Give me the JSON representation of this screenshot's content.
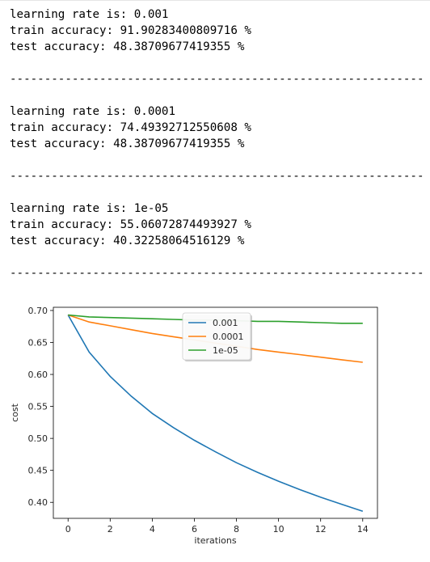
{
  "output": {
    "runs": [
      {
        "lr_line": "learning rate is: 0.001",
        "train_line": "train accuracy: 91.90283400809716 %",
        "test_line": "test accuracy: 48.38709677419355 %"
      },
      {
        "lr_line": "learning rate is: 0.0001",
        "train_line": "train accuracy: 74.49392712550608 %",
        "test_line": "test accuracy: 48.38709677419355 %"
      },
      {
        "lr_line": "learning rate is: 1e-05",
        "train_line": "train accuracy: 55.06072874493927 %",
        "test_line": "test accuracy: 40.32258064516129 %"
      }
    ],
    "separator": "-------------------------------------------------------------------"
  },
  "chart_data": {
    "type": "line",
    "xlabel": "iterations",
    "ylabel": "cost",
    "xlim": [
      -0.7,
      14.7
    ],
    "ylim": [
      0.375,
      0.705
    ],
    "xticks": [
      0,
      2,
      4,
      6,
      8,
      10,
      12,
      14
    ],
    "yticks": [
      0.4,
      0.45,
      0.5,
      0.55,
      0.6,
      0.65,
      0.7
    ],
    "ytick_labels": [
      "0.40",
      "0.45",
      "0.50",
      "0.55",
      "0.60",
      "0.65",
      "0.70"
    ],
    "legend_position": "upper-center",
    "grid": false,
    "x": [
      0,
      1,
      2,
      3,
      4,
      5,
      6,
      7,
      8,
      9,
      10,
      11,
      12,
      13,
      14
    ],
    "series": [
      {
        "name": "0.001",
        "color": "#1f77b4",
        "values": [
          0.693,
          0.635,
          0.597,
          0.566,
          0.539,
          0.517,
          0.497,
          0.479,
          0.462,
          0.447,
          0.433,
          0.42,
          0.408,
          0.397,
          0.386
        ]
      },
      {
        "name": "0.0001",
        "color": "#ff7f0e",
        "values": [
          0.693,
          0.682,
          0.676,
          0.67,
          0.664,
          0.659,
          0.654,
          0.649,
          0.644,
          0.639,
          0.635,
          0.631,
          0.627,
          0.623,
          0.619
        ]
      },
      {
        "name": "1e-05",
        "color": "#2ca02c",
        "values": [
          0.693,
          0.69,
          0.689,
          0.688,
          0.687,
          0.686,
          0.685,
          0.685,
          0.684,
          0.683,
          0.683,
          0.682,
          0.681,
          0.68,
          0.68
        ]
      }
    ]
  }
}
